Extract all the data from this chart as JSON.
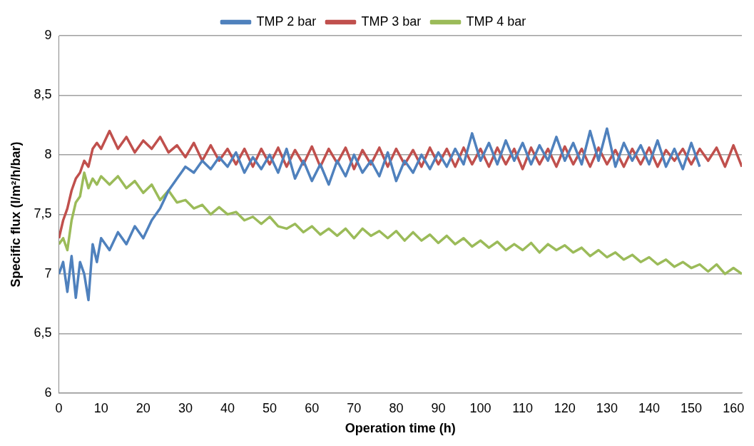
{
  "chart_data": {
    "type": "line",
    "xlabel": "Operation time (h)",
    "ylabel": "Specific flux (l/m²/h/bar)",
    "legend": "top",
    "grid": "y",
    "marker": "none",
    "line_style": "solid",
    "xlim": [
      0,
      162
    ],
    "xticks": [
      0,
      10,
      20,
      30,
      40,
      50,
      60,
      70,
      80,
      90,
      100,
      110,
      120,
      130,
      140,
      150,
      160
    ],
    "ylim": [
      6,
      9
    ],
    "yticks": [
      6,
      {
        "value": 6.5,
        "label": "6,5"
      },
      7,
      {
        "value": 7.5,
        "label": "7,5"
      },
      8,
      {
        "value": 8.5,
        "label": "8,5"
      },
      9
    ],
    "series": [
      {
        "name": "TMP 2 bar",
        "color": "#4f81bd",
        "x": [
          0,
          1,
          2,
          3,
          4,
          5,
          6,
          7,
          8,
          9,
          10,
          12,
          14,
          16,
          18,
          20,
          22,
          24,
          26,
          28,
          30,
          32,
          34,
          36,
          38,
          40,
          42,
          44,
          46,
          48,
          50,
          52,
          54,
          56,
          58,
          60,
          62,
          64,
          66,
          68,
          70,
          72,
          74,
          76,
          78,
          80,
          82,
          84,
          86,
          88,
          90,
          92,
          94,
          96,
          98,
          100,
          102,
          104,
          106,
          108,
          110,
          112,
          114,
          116,
          118,
          120,
          122,
          124,
          126,
          128,
          130,
          132,
          134,
          136,
          138,
          140,
          142,
          144,
          146,
          148,
          150,
          152
        ],
        "values": [
          7.0,
          7.1,
          6.85,
          7.15,
          6.8,
          7.1,
          7.0,
          6.78,
          7.25,
          7.1,
          7.3,
          7.2,
          7.35,
          7.25,
          7.4,
          7.3,
          7.45,
          7.55,
          7.7,
          7.8,
          7.9,
          7.85,
          7.95,
          7.88,
          7.98,
          7.9,
          8.02,
          7.85,
          7.98,
          7.88,
          8.0,
          7.85,
          8.05,
          7.8,
          7.95,
          7.78,
          7.92,
          7.75,
          7.95,
          7.82,
          8.0,
          7.85,
          7.95,
          7.82,
          8.02,
          7.78,
          7.95,
          7.85,
          8.0,
          7.88,
          8.02,
          7.9,
          8.05,
          7.92,
          8.18,
          7.95,
          8.1,
          7.92,
          8.12,
          7.95,
          8.1,
          7.92,
          8.08,
          7.95,
          8.15,
          7.95,
          8.1,
          7.92,
          8.2,
          7.95,
          8.22,
          7.9,
          8.1,
          7.95,
          8.08,
          7.92,
          8.12,
          7.9,
          8.05,
          7.88,
          8.1,
          7.9
        ]
      },
      {
        "name": "TMP 3 bar",
        "color": "#c0504d",
        "x": [
          0,
          1,
          2,
          3,
          4,
          5,
          6,
          7,
          8,
          9,
          10,
          12,
          14,
          16,
          18,
          20,
          22,
          24,
          26,
          28,
          30,
          32,
          34,
          36,
          38,
          40,
          42,
          44,
          46,
          48,
          50,
          52,
          54,
          56,
          58,
          60,
          62,
          64,
          66,
          68,
          70,
          72,
          74,
          76,
          78,
          80,
          82,
          84,
          86,
          88,
          90,
          92,
          94,
          96,
          98,
          100,
          102,
          104,
          106,
          108,
          110,
          112,
          114,
          116,
          118,
          120,
          122,
          124,
          126,
          128,
          130,
          132,
          134,
          136,
          138,
          140,
          142,
          144,
          146,
          148,
          150,
          152,
          154,
          156,
          158,
          160,
          162
        ],
        "values": [
          7.3,
          7.45,
          7.55,
          7.7,
          7.8,
          7.85,
          7.95,
          7.9,
          8.05,
          8.1,
          8.05,
          8.2,
          8.05,
          8.15,
          8.02,
          8.12,
          8.05,
          8.15,
          8.02,
          8.08,
          7.98,
          8.1,
          7.95,
          8.08,
          7.95,
          8.05,
          7.92,
          8.05,
          7.9,
          8.05,
          7.92,
          8.06,
          7.9,
          8.04,
          7.92,
          8.07,
          7.9,
          8.05,
          7.93,
          8.06,
          7.88,
          8.04,
          7.92,
          8.06,
          7.9,
          8.05,
          7.92,
          8.04,
          7.9,
          8.06,
          7.92,
          8.05,
          7.9,
          8.06,
          7.92,
          8.05,
          7.9,
          8.06,
          7.92,
          8.05,
          7.88,
          8.06,
          7.92,
          8.05,
          7.9,
          8.07,
          7.92,
          8.05,
          7.9,
          8.06,
          7.92,
          8.04,
          7.9,
          8.05,
          7.92,
          8.06,
          7.9,
          8.04,
          7.95,
          8.05,
          7.92,
          8.05,
          7.95,
          8.06,
          7.9,
          8.08,
          7.9
        ]
      },
      {
        "name": "TMP 4 bar",
        "color": "#9bbb59",
        "x": [
          0,
          1,
          2,
          3,
          4,
          5,
          6,
          7,
          8,
          9,
          10,
          12,
          14,
          16,
          18,
          20,
          22,
          24,
          26,
          28,
          30,
          32,
          34,
          36,
          38,
          40,
          42,
          44,
          46,
          48,
          50,
          52,
          54,
          56,
          58,
          60,
          62,
          64,
          66,
          68,
          70,
          72,
          74,
          76,
          78,
          80,
          82,
          84,
          86,
          88,
          90,
          92,
          94,
          96,
          98,
          100,
          102,
          104,
          106,
          108,
          110,
          112,
          114,
          116,
          118,
          120,
          122,
          124,
          126,
          128,
          130,
          132,
          134,
          136,
          138,
          140,
          142,
          144,
          146,
          148,
          150,
          152,
          154,
          156,
          158,
          160,
          162
        ],
        "values": [
          7.25,
          7.3,
          7.2,
          7.45,
          7.6,
          7.65,
          7.85,
          7.72,
          7.8,
          7.75,
          7.82,
          7.75,
          7.82,
          7.72,
          7.78,
          7.68,
          7.75,
          7.62,
          7.7,
          7.6,
          7.62,
          7.55,
          7.58,
          7.5,
          7.56,
          7.5,
          7.52,
          7.45,
          7.48,
          7.42,
          7.48,
          7.4,
          7.38,
          7.42,
          7.35,
          7.4,
          7.33,
          7.38,
          7.32,
          7.38,
          7.3,
          7.38,
          7.32,
          7.36,
          7.3,
          7.36,
          7.28,
          7.35,
          7.28,
          7.33,
          7.26,
          7.32,
          7.25,
          7.3,
          7.23,
          7.28,
          7.22,
          7.27,
          7.2,
          7.25,
          7.2,
          7.26,
          7.18,
          7.25,
          7.2,
          7.24,
          7.18,
          7.22,
          7.15,
          7.2,
          7.14,
          7.18,
          7.12,
          7.16,
          7.1,
          7.14,
          7.08,
          7.12,
          7.06,
          7.1,
          7.05,
          7.08,
          7.02,
          7.08,
          7.0,
          7.05,
          7.0
        ]
      }
    ]
  }
}
